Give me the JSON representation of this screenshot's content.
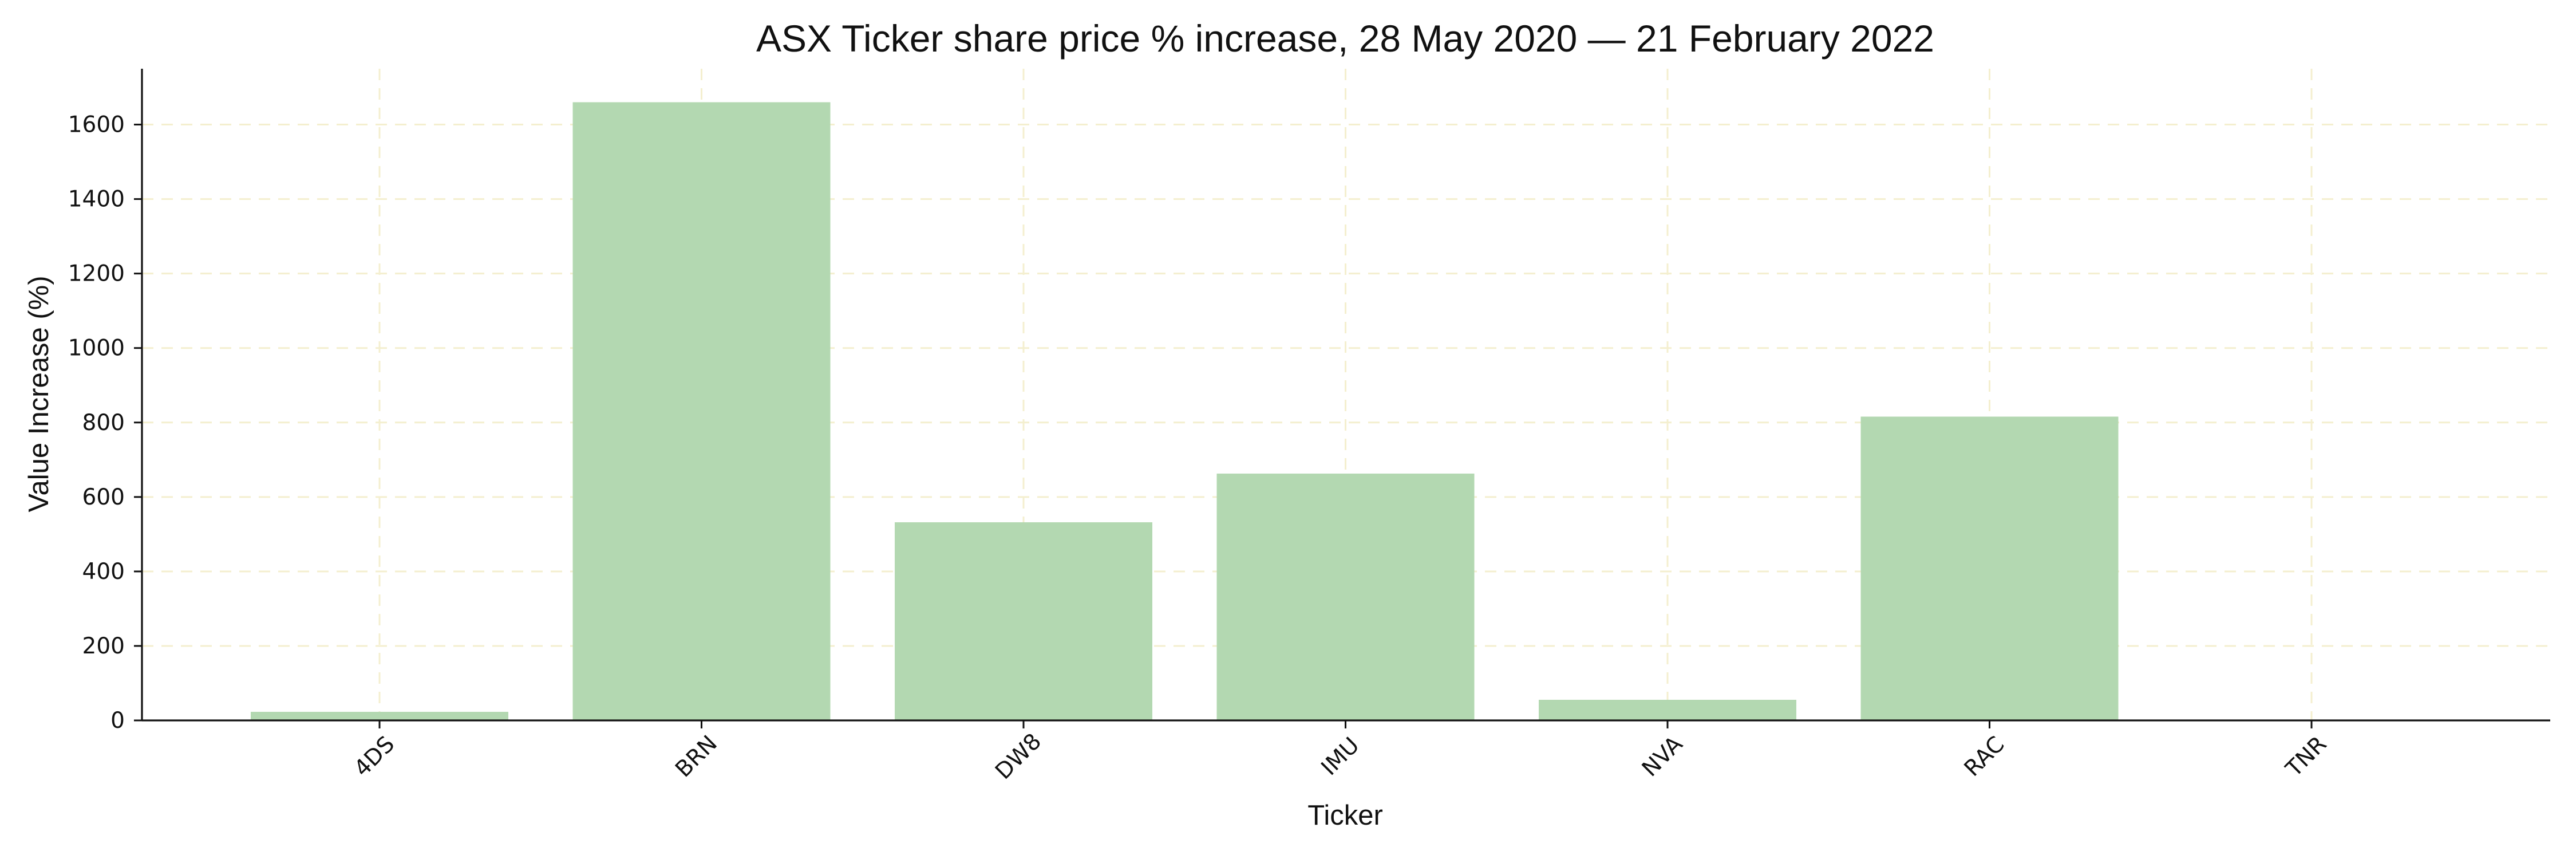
{
  "chart_data": {
    "type": "bar",
    "title": "ASX Ticker share price % increase, 28 May 2020 — 21 February 2022",
    "xlabel": "Ticker",
    "ylabel": "Value Increase (%)",
    "categories": [
      "4DS",
      "BRN",
      "DW8",
      "IMU",
      "NVA",
      "RAC",
      "TNR"
    ],
    "values": [
      23,
      1660,
      532,
      663,
      55,
      816,
      0
    ],
    "ylim": [
      0,
      1750
    ],
    "y_ticks": [
      0,
      200,
      400,
      600,
      800,
      1000,
      1200,
      1400,
      1600
    ],
    "grid": true,
    "legend": "none",
    "colors": {
      "bar": "#b3d8b1",
      "grid": "#f4efcf",
      "axis": "#111111",
      "text": "#111111"
    }
  }
}
